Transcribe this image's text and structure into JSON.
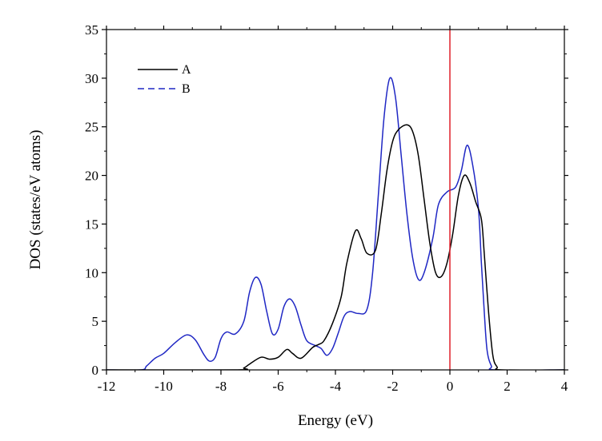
{
  "chart_data": {
    "type": "line",
    "title": "",
    "xlabel": "Energy (eV)",
    "ylabel": "DOS (states/eV atoms)",
    "xlim": [
      -12,
      4
    ],
    "ylim": [
      0,
      35
    ],
    "x_ticks": [
      "-12",
      "-10",
      "-8",
      "-6",
      "-4",
      "-2",
      "0",
      "2",
      "4"
    ],
    "y_ticks": [
      "0",
      "5",
      "10",
      "15",
      "20",
      "25",
      "30",
      "35"
    ],
    "grid": false,
    "legend_position": "top-left",
    "vertical_line": {
      "x": 0,
      "color": "#e0202a"
    },
    "series": [
      {
        "name": "A",
        "color": "#000000",
        "dash": "solid",
        "points": [
          [
            -12,
            0
          ],
          [
            -7.5,
            0
          ],
          [
            -7.2,
            0.2
          ],
          [
            -7.0,
            0.6
          ],
          [
            -6.6,
            1.3
          ],
          [
            -6.3,
            1.1
          ],
          [
            -6.0,
            1.3
          ],
          [
            -5.7,
            2.1
          ],
          [
            -5.5,
            1.7
          ],
          [
            -5.2,
            1.2
          ],
          [
            -4.8,
            2.3
          ],
          [
            -4.6,
            2.6
          ],
          [
            -4.4,
            3.0
          ],
          [
            -4.1,
            4.8
          ],
          [
            -3.8,
            7.5
          ],
          [
            -3.6,
            11.0
          ],
          [
            -3.3,
            14.3
          ],
          [
            -3.1,
            13.5
          ],
          [
            -2.9,
            12.0
          ],
          [
            -2.6,
            12.3
          ],
          [
            -2.4,
            16.0
          ],
          [
            -2.2,
            20.5
          ],
          [
            -2.0,
            23.5
          ],
          [
            -1.8,
            24.7
          ],
          [
            -1.5,
            25.2
          ],
          [
            -1.3,
            24.5
          ],
          [
            -1.1,
            22.0
          ],
          [
            -0.9,
            17.5
          ],
          [
            -0.7,
            13.0
          ],
          [
            -0.5,
            10.0
          ],
          [
            -0.3,
            9.6
          ],
          [
            -0.1,
            11.0
          ],
          [
            0.1,
            14.0
          ],
          [
            0.3,
            18.0
          ],
          [
            0.5,
            20.0
          ],
          [
            0.7,
            19.2
          ],
          [
            0.9,
            17.3
          ],
          [
            1.1,
            15.5
          ],
          [
            1.2,
            12.0
          ],
          [
            1.35,
            6.0
          ],
          [
            1.5,
            1.5
          ],
          [
            1.65,
            0.3
          ],
          [
            1.8,
            0
          ],
          [
            4,
            0
          ]
        ]
      },
      {
        "name": "B",
        "color": "#1f27c4",
        "dash": "dashed",
        "points": [
          [
            -12,
            0
          ],
          [
            -10.8,
            0
          ],
          [
            -10.6,
            0.4
          ],
          [
            -10.3,
            1.2
          ],
          [
            -10.0,
            1.7
          ],
          [
            -9.6,
            2.8
          ],
          [
            -9.2,
            3.6
          ],
          [
            -8.9,
            3.1
          ],
          [
            -8.6,
            1.6
          ],
          [
            -8.4,
            0.9
          ],
          [
            -8.2,
            1.3
          ],
          [
            -8.0,
            3.2
          ],
          [
            -7.8,
            3.9
          ],
          [
            -7.5,
            3.7
          ],
          [
            -7.2,
            5.0
          ],
          [
            -7.0,
            8.0
          ],
          [
            -6.8,
            9.5
          ],
          [
            -6.6,
            8.8
          ],
          [
            -6.4,
            6.0
          ],
          [
            -6.2,
            3.7
          ],
          [
            -6.0,
            4.2
          ],
          [
            -5.8,
            6.5
          ],
          [
            -5.6,
            7.3
          ],
          [
            -5.4,
            6.5
          ],
          [
            -5.2,
            4.6
          ],
          [
            -5.0,
            3.0
          ],
          [
            -4.7,
            2.5
          ],
          [
            -4.5,
            2.2
          ],
          [
            -4.3,
            1.5
          ],
          [
            -4.1,
            2.2
          ],
          [
            -3.9,
            3.8
          ],
          [
            -3.7,
            5.5
          ],
          [
            -3.5,
            6.0
          ],
          [
            -3.2,
            5.8
          ],
          [
            -2.9,
            6.2
          ],
          [
            -2.7,
            10.0
          ],
          [
            -2.5,
            18.0
          ],
          [
            -2.3,
            26.0
          ],
          [
            -2.1,
            30.0
          ],
          [
            -1.9,
            28.0
          ],
          [
            -1.7,
            22.0
          ],
          [
            -1.5,
            16.0
          ],
          [
            -1.3,
            11.5
          ],
          [
            -1.1,
            9.3
          ],
          [
            -0.9,
            10.0
          ],
          [
            -0.6,
            13.5
          ],
          [
            -0.4,
            17.0
          ],
          [
            -0.1,
            18.3
          ],
          [
            0.2,
            18.8
          ],
          [
            0.4,
            20.5
          ],
          [
            0.6,
            23.1
          ],
          [
            0.8,
            21.0
          ],
          [
            1.0,
            16.5
          ],
          [
            1.1,
            11.0
          ],
          [
            1.2,
            6.0
          ],
          [
            1.3,
            2.0
          ],
          [
            1.45,
            0.4
          ],
          [
            1.6,
            0
          ],
          [
            4,
            0
          ]
        ]
      }
    ]
  }
}
